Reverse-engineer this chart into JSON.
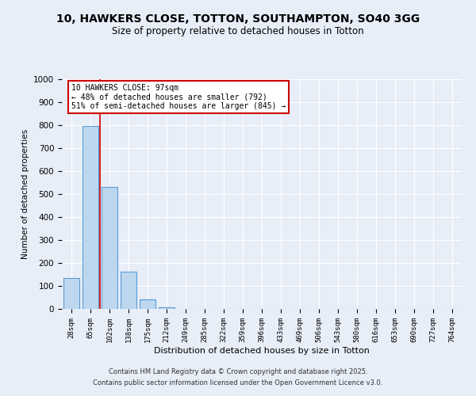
{
  "title": "10, HAWKERS CLOSE, TOTTON, SOUTHAMPTON, SO40 3GG",
  "subtitle": "Size of property relative to detached houses in Totton",
  "xlabel": "Distribution of detached houses by size in Totton",
  "ylabel": "Number of detached properties",
  "categories": [
    "28sqm",
    "65sqm",
    "102sqm",
    "138sqm",
    "175sqm",
    "212sqm",
    "249sqm",
    "285sqm",
    "322sqm",
    "359sqm",
    "396sqm",
    "433sqm",
    "469sqm",
    "506sqm",
    "543sqm",
    "580sqm",
    "616sqm",
    "653sqm",
    "690sqm",
    "727sqm",
    "764sqm"
  ],
  "values": [
    135,
    795,
    530,
    162,
    40,
    8,
    0,
    0,
    0,
    0,
    0,
    0,
    0,
    0,
    0,
    0,
    0,
    0,
    0,
    0,
    0
  ],
  "bar_color": "#bdd7ee",
  "bar_edge_color": "#5b9bd5",
  "ylim": [
    0,
    1000
  ],
  "yticks": [
    0,
    100,
    200,
    300,
    400,
    500,
    600,
    700,
    800,
    900,
    1000
  ],
  "red_line_x": 1.5,
  "annotation_title": "10 HAWKERS CLOSE: 97sqm",
  "annotation_line1": "← 48% of detached houses are smaller (792)",
  "annotation_line2": "51% of semi-detached houses are larger (845) →",
  "annotation_box_facecolor": "#ffffff",
  "annotation_box_edgecolor": "#cc0000",
  "bg_color": "#e8eef8",
  "grid_color": "#d0d8e8",
  "footer1": "Contains HM Land Registry data © Crown copyright and database right 2025.",
  "footer2": "Contains public sector information licensed under the Open Government Licence v3.0."
}
